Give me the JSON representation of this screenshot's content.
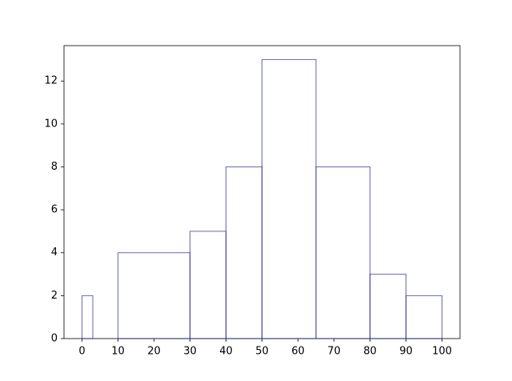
{
  "chart_data": {
    "type": "histogram",
    "bins": [
      0,
      3,
      10,
      30,
      40,
      50,
      65,
      80,
      90,
      100
    ],
    "values": [
      2,
      0,
      4,
      5,
      8,
      13,
      8,
      3,
      2
    ],
    "color": "#00008b",
    "xlim": [
      -5,
      105
    ],
    "xticks": [
      0,
      10,
      20,
      30,
      40,
      50,
      60,
      70,
      80,
      90,
      100
    ],
    "ylim": [
      0,
      13.65
    ],
    "yticks": [
      0,
      2,
      4,
      6,
      8,
      10,
      12
    ]
  }
}
